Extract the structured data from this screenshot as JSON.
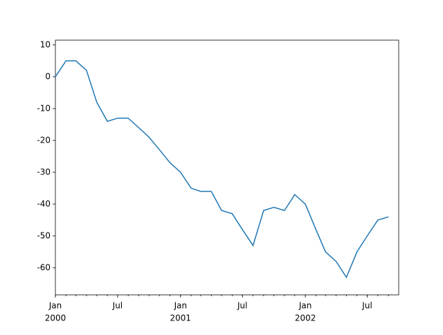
{
  "chart_data": {
    "type": "line",
    "x": [
      "2000-01",
      "2000-02",
      "2000-03",
      "2000-04",
      "2000-05",
      "2000-06",
      "2000-07",
      "2000-08",
      "2000-09",
      "2000-10",
      "2000-11",
      "2000-12",
      "2001-01",
      "2001-02",
      "2001-03",
      "2001-04",
      "2001-05",
      "2001-06",
      "2001-07",
      "2001-08",
      "2001-09",
      "2001-10",
      "2001-11",
      "2001-12",
      "2002-01",
      "2002-02",
      "2002-03",
      "2002-04",
      "2002-05",
      "2002-06",
      "2002-07",
      "2002-08",
      "2002-09"
    ],
    "series": [
      {
        "color": "#1f77b4",
        "values": [
          0,
          5,
          5,
          2,
          -8,
          -14,
          -13,
          -13,
          -16,
          -19,
          -23,
          -27,
          -30,
          -35,
          -36,
          -36,
          -42,
          -43,
          -48,
          -53,
          -42,
          -41,
          -42,
          -37,
          -40,
          -48,
          -55,
          -58,
          -63,
          -55,
          -50,
          -45,
          -44
        ]
      }
    ],
    "xlim": [
      "2000-01",
      "2002-10"
    ],
    "xticks": [
      {
        "value": "2000-01",
        "label": "Jan",
        "year": "2000"
      },
      {
        "value": "2000-07",
        "label": "Jul"
      },
      {
        "value": "2001-01",
        "label": "Jan",
        "year": "2001"
      },
      {
        "value": "2001-07",
        "label": "Jul"
      },
      {
        "value": "2002-01",
        "label": "Jan",
        "year": "2002"
      },
      {
        "value": "2002-07",
        "label": "Jul"
      }
    ],
    "ylim": [
      -68.5,
      11.5
    ],
    "yticks": [
      10,
      0,
      -10,
      -20,
      -30,
      -40,
      -50,
      -60
    ]
  }
}
